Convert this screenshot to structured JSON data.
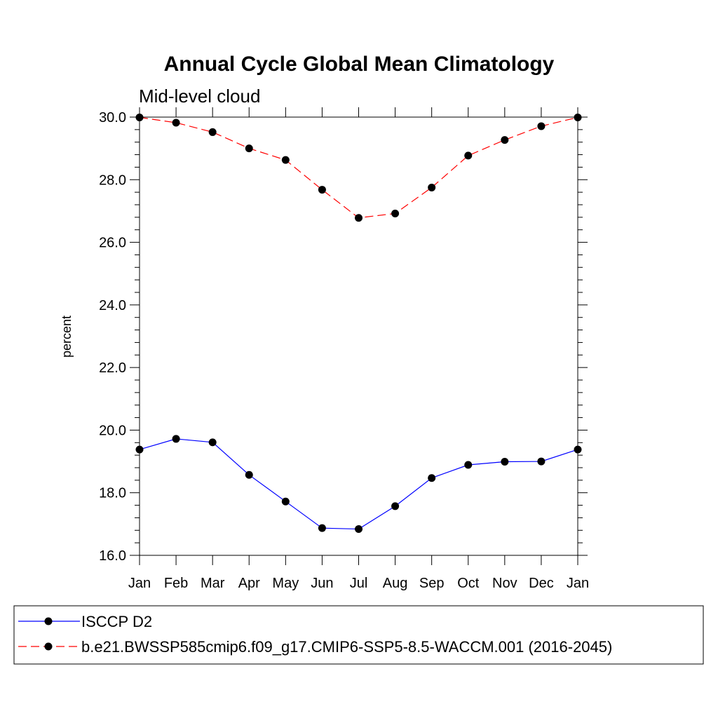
{
  "chart_data": {
    "type": "line",
    "title": "Annual Cycle Global Mean Climatology",
    "subtitle": "Mid-level cloud",
    "xlabel": "",
    "ylabel": "percent",
    "categories": [
      "Jan",
      "Feb",
      "Mar",
      "Apr",
      "May",
      "Jun",
      "Jul",
      "Aug",
      "Sep",
      "Oct",
      "Nov",
      "Dec",
      "Jan"
    ],
    "ylim": [
      16.0,
      30.0
    ],
    "yticks": [
      "16.0",
      "18.0",
      "20.0",
      "22.0",
      "24.0",
      "26.0",
      "28.0",
      "30.0"
    ],
    "grid": false,
    "legend_position": "bottom",
    "series": [
      {
        "name": "ISCCP D2",
        "color": "#0000ff",
        "dash": "solid",
        "marker": "circle",
        "values": [
          19.38,
          19.72,
          19.61,
          18.57,
          17.72,
          16.87,
          16.84,
          17.57,
          18.47,
          18.89,
          18.99,
          19.0,
          19.38
        ]
      },
      {
        "name": "b.e21.BWSSP585cmip6.f09_g17.CMIP6-SSP5-8.5-WACCM.001 (2016-2045)",
        "color": "#ff0000",
        "dash": "dashed",
        "marker": "circle",
        "values": [
          29.99,
          29.82,
          29.52,
          29.0,
          28.63,
          27.68,
          26.78,
          26.92,
          27.75,
          28.77,
          29.27,
          29.71,
          29.99
        ]
      }
    ]
  }
}
